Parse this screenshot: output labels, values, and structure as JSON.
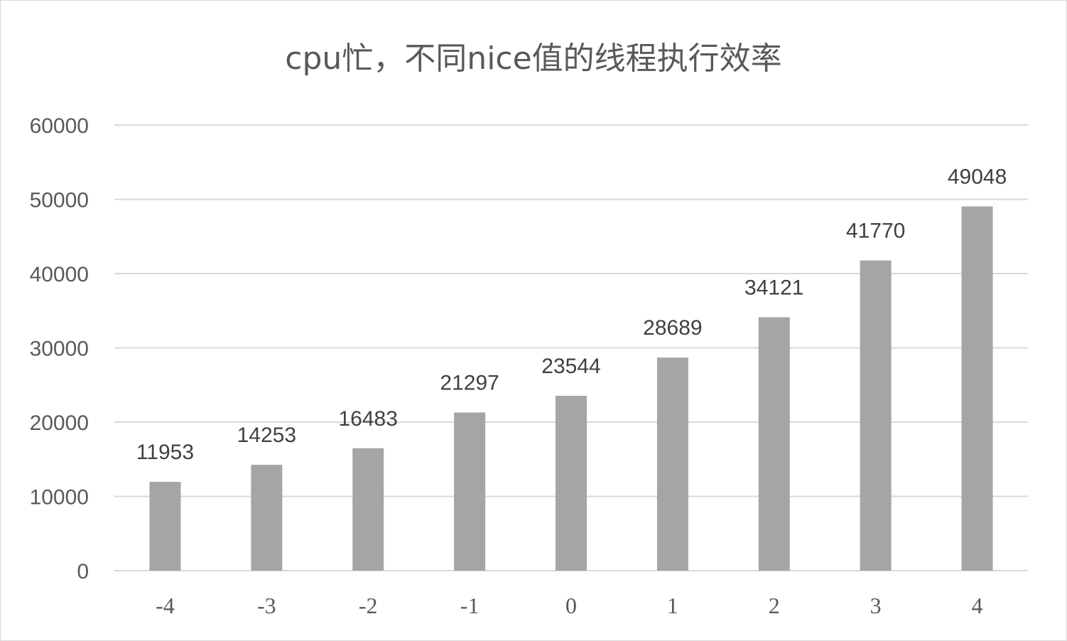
{
  "chart_data": {
    "type": "bar",
    "title": "cpu忙，不同nice值的线程执行效率",
    "xlabel": "",
    "ylabel": "",
    "categories": [
      "-4",
      "-3",
      "-2",
      "-1",
      "0",
      "1",
      "2",
      "3",
      "4"
    ],
    "values": [
      11953,
      14253,
      16483,
      21297,
      23544,
      28689,
      34121,
      41770,
      49048
    ],
    "ylim": [
      0,
      60000
    ],
    "yticks": [
      "0",
      "10000",
      "20000",
      "30000",
      "40000",
      "50000",
      "60000"
    ],
    "grid": true,
    "legend": "none",
    "data_labels": true,
    "colors": {
      "bar": "#a5a5a5",
      "grid": "#d9d9d9",
      "text": "#595959"
    }
  }
}
